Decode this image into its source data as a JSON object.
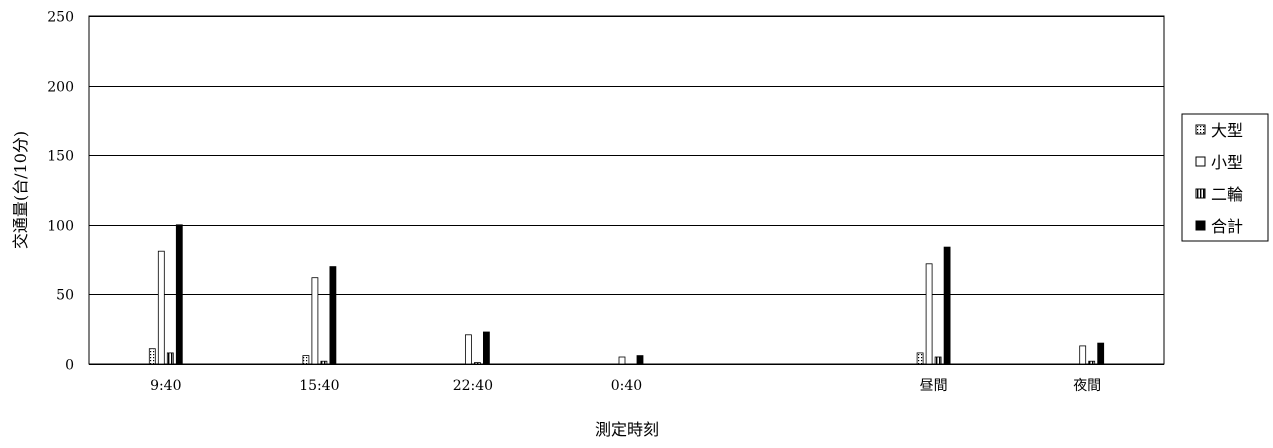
{
  "chart_data": {
    "type": "bar",
    "title": "",
    "xlabel": "測定時刻",
    "ylabel": "交通量(台/10分)",
    "ylim": [
      0,
      250
    ],
    "yticks": [
      0,
      50,
      100,
      150,
      200,
      250
    ],
    "grid": true,
    "legend_position": "right",
    "slots": [
      "9:40",
      "15:40",
      "22:40",
      "0:40",
      "",
      "昼間",
      "夜間"
    ],
    "categories": [
      "9:40",
      "15:40",
      "22:40",
      "0:40",
      "昼間",
      "夜間"
    ],
    "series": [
      {
        "name": "大型",
        "pattern": "dots",
        "values": [
          11,
          6,
          0,
          0,
          8,
          0
        ]
      },
      {
        "name": "小型",
        "pattern": "white",
        "values": [
          81,
          62,
          21,
          5,
          72,
          13
        ]
      },
      {
        "name": "二輪",
        "pattern": "hatch",
        "values": [
          8,
          2,
          1,
          0,
          5,
          2
        ]
      },
      {
        "name": "合計",
        "pattern": "black",
        "values": [
          100,
          70,
          23,
          6,
          84,
          15
        ]
      }
    ]
  }
}
